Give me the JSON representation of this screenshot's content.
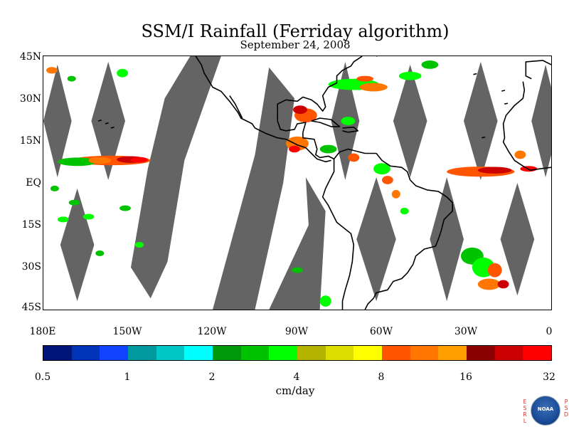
{
  "title": "SSM/I Rainfall (Ferriday algorithm)",
  "subtitle": "September 24, 2008",
  "map": {
    "lat_labels": [
      "45N",
      "30N",
      "15N",
      "EQ",
      "15S",
      "30S",
      "45S"
    ],
    "lon_labels": [
      "180E",
      "150W",
      "120W",
      "90W",
      "60W",
      "30W",
      "0"
    ],
    "extent": {
      "lon": [
        -180,
        0
      ],
      "lat": [
        -45,
        45
      ]
    },
    "colors": {
      "swath_gap": "#646464",
      "coastline": "#000000",
      "background": "#ffffff"
    }
  },
  "colorbar": {
    "tick_labels": [
      "0.5",
      "1",
      "2",
      "4",
      "8",
      "16",
      "32"
    ],
    "units": "cm/day",
    "colors": [
      "#00157a",
      "#0033b8",
      "#1044ff",
      "#00999e",
      "#00c8c8",
      "#00ffff",
      "#00990a",
      "#00c300",
      "#00ff00",
      "#b4b400",
      "#dddd00",
      "#ffff00",
      "#ff5500",
      "#ff7700",
      "#ffa000",
      "#8b0000",
      "#cc0000",
      "#ff0000"
    ]
  },
  "logo": {
    "center_text": "NOAA",
    "left_letters": "ESRL",
    "right_letters": "PSD"
  }
}
